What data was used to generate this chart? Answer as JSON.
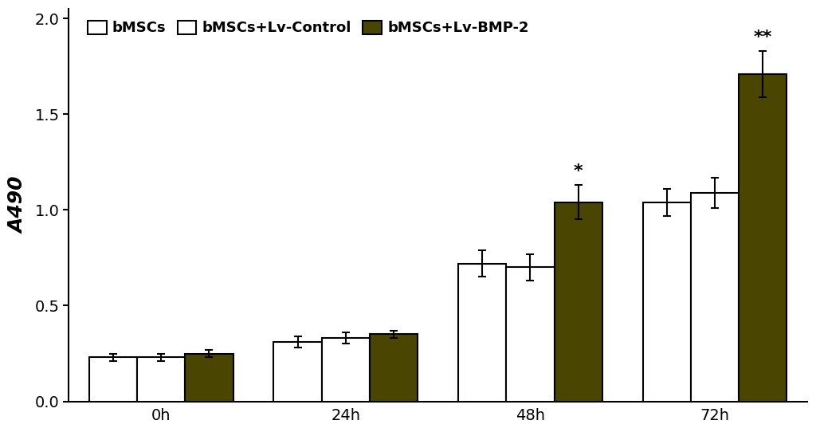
{
  "groups": [
    "0h",
    "24h",
    "48h",
    "72h"
  ],
  "series": [
    {
      "label": "bMSCs",
      "facecolor": "#ffffff",
      "edgecolor": "#000000",
      "values": [
        0.23,
        0.31,
        0.72,
        1.04
      ],
      "errors": [
        0.02,
        0.03,
        0.07,
        0.07
      ]
    },
    {
      "label": "bMSCs+Lv-Control",
      "facecolor": "#ffffff",
      "edgecolor": "#000000",
      "values": [
        0.23,
        0.33,
        0.7,
        1.09
      ],
      "errors": [
        0.02,
        0.03,
        0.07,
        0.08
      ]
    },
    {
      "label": "bMSCs+Lv-BMP-2",
      "facecolor": "#4a4500",
      "edgecolor": "#000000",
      "values": [
        0.25,
        0.35,
        1.04,
        1.71
      ],
      "errors": [
        0.02,
        0.02,
        0.09,
        0.12
      ]
    }
  ],
  "ylabel": "A490",
  "ylim": [
    0.0,
    2.05
  ],
  "yticks": [
    0.0,
    0.5,
    1.0,
    1.5,
    2.0
  ],
  "bar_width": 0.26,
  "significance_48h": "*",
  "significance_72h": "**",
  "fontsize_axis_label": 18,
  "fontsize_tick": 14,
  "fontsize_legend": 13,
  "fontsize_sig": 16,
  "fig_width": 10.24,
  "fig_height": 5.42,
  "dpi": 100
}
